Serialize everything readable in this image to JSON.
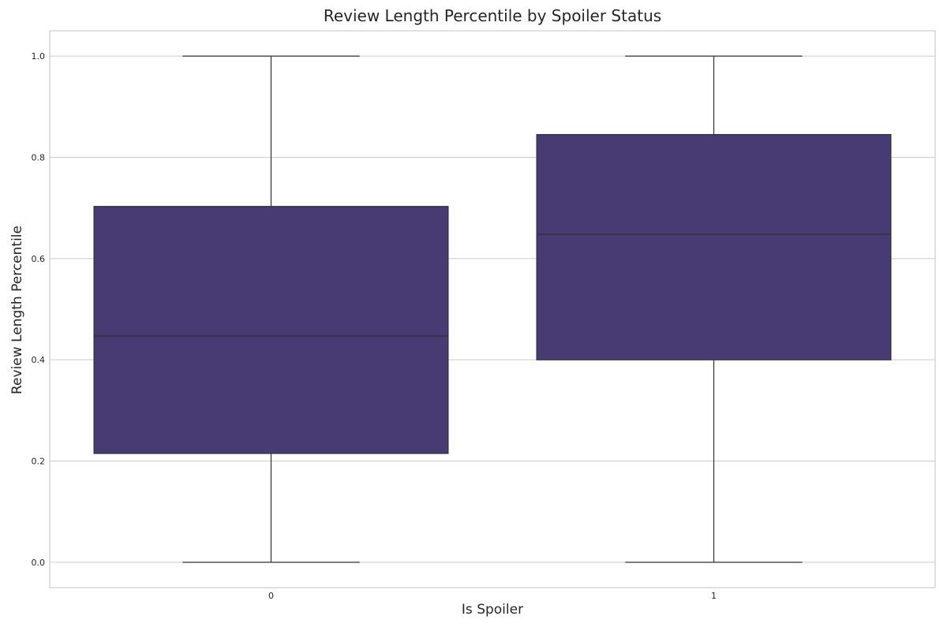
{
  "chart_data": {
    "type": "box",
    "title": "Review Length Percentile by Spoiler Status",
    "xlabel": "Is Spoiler",
    "ylabel": "Review Length Percentile",
    "categories": [
      "0",
      "1"
    ],
    "boxes": [
      {
        "category": "0",
        "min": 0.0,
        "q1": 0.215,
        "median": 0.447,
        "q3": 0.703,
        "max": 1.0
      },
      {
        "category": "1",
        "min": 0.0,
        "q1": 0.4,
        "median": 0.648,
        "q3": 0.845,
        "max": 1.0
      }
    ],
    "ylim": [
      -0.05,
      1.05
    ],
    "yticks": [
      "0.0",
      "0.2",
      "0.4",
      "0.6",
      "0.8",
      "1.0"
    ],
    "grid": true,
    "box_color": "#483a72",
    "line_color": "#2f2f3a",
    "grid_color": "#cccccc"
  }
}
